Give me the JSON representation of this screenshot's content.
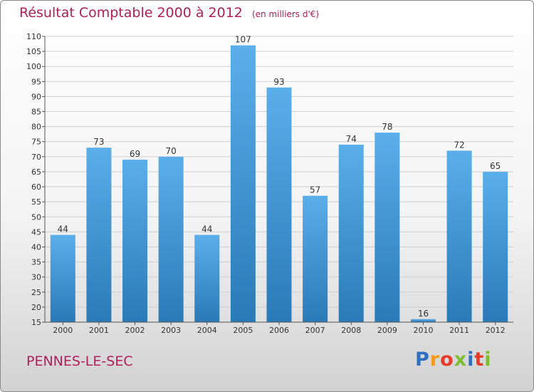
{
  "title": "Résultat Comptable 2000 à 2012",
  "unit_label": "(en milliers d'€)",
  "commune": "PENNES-LE-SEC",
  "logo": {
    "letters": [
      "P",
      "r",
      "o",
      "x",
      "i",
      "t",
      "i"
    ],
    "colors": [
      "#2f6fc0",
      "#f39a1e",
      "#e8392a",
      "#7cbf2e",
      "#2f6fc0",
      "#e8392a",
      "#7cbf2e"
    ]
  },
  "colors": {
    "accent": "#b0205a",
    "bar_top": "#5aaeea",
    "bar_bottom": "#2a7ab8",
    "grid": "#cfcfcf"
  },
  "chart_data": {
    "type": "bar",
    "title": "Résultat Comptable 2000 à 2012",
    "xlabel": "",
    "ylabel": "",
    "grid": true,
    "ylim": [
      15,
      110
    ],
    "yticks": [
      15,
      20,
      25,
      30,
      35,
      40,
      45,
      50,
      55,
      60,
      65,
      70,
      75,
      80,
      85,
      90,
      95,
      100,
      105,
      110
    ],
    "categories": [
      "2000",
      "2001",
      "2002",
      "2003",
      "2004",
      "2005",
      "2006",
      "2007",
      "2008",
      "2009",
      "2010",
      "2011",
      "2012"
    ],
    "values": [
      44,
      73,
      69,
      70,
      44,
      107,
      93,
      57,
      74,
      78,
      16,
      72,
      65
    ]
  }
}
